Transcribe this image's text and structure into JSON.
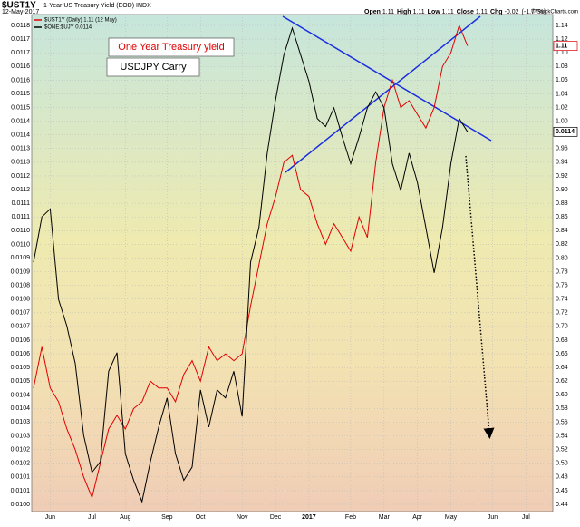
{
  "chart_data": {
    "type": "line",
    "title": "$UST1Y",
    "subtitle": "1-Year US Treasury Yield (EOD) INDX",
    "date": "12-May-2017",
    "credit": "© StockCharts.com",
    "quote": [
      {
        "label": "Open",
        "value": 1.11
      },
      {
        "label": "High",
        "value": 1.11
      },
      {
        "label": "Low",
        "value": 1.11
      },
      {
        "label": "Close",
        "value": 1.11
      },
      {
        "label": "Chg",
        "value": -0.02,
        "pct": "(-1.77%)"
      }
    ],
    "annotations": [
      "One Year Treasury yield",
      "USDJPY Carry"
    ],
    "categories": [
      null,
      null,
      "Jun",
      null,
      null,
      null,
      null,
      "Jul",
      null,
      null,
      null,
      "Aug",
      null,
      null,
      null,
      null,
      "Sep",
      null,
      null,
      null,
      "Oct",
      null,
      null,
      null,
      null,
      "Nov",
      null,
      null,
      null,
      "Dec",
      null,
      null,
      null,
      "2017",
      null,
      null,
      null,
      null,
      "Feb",
      null,
      null,
      null,
      "Mar",
      null,
      null,
      null,
      "Apr",
      null,
      null,
      null,
      "May",
      null,
      null,
      null,
      null,
      "Jun",
      null,
      null,
      null,
      "Jul",
      null,
      null,
      null
    ],
    "series": [
      {
        "name": "$UST1Y (Daily) 1.11 (12 May)",
        "color": "#e00000",
        "axis": "y2",
        "values": [
          0.61,
          0.67,
          0.61,
          0.59,
          0.55,
          0.52,
          0.48,
          0.45,
          0.5,
          0.55,
          0.57,
          0.55,
          0.58,
          0.59,
          0.62,
          0.61,
          0.61,
          0.59,
          0.63,
          0.65,
          0.62,
          0.67,
          0.65,
          0.66,
          0.65,
          0.66,
          0.73,
          0.79,
          0.85,
          0.89,
          0.94,
          0.95,
          0.9,
          0.89,
          0.85,
          0.82,
          0.85,
          0.83,
          0.81,
          0.86,
          0.83,
          0.94,
          1.02,
          1.06,
          1.02,
          1.03,
          1.01,
          0.99,
          1.02,
          1.08,
          1.1,
          1.14,
          1.11,
          null,
          null,
          null,
          null,
          null,
          null,
          null,
          null,
          null,
          null
        ]
      },
      {
        "name": "$ONE:$UJY 0.0114",
        "color": "#000000",
        "values": [
          0.01091,
          0.01108,
          0.01111,
          0.01077,
          0.01067,
          0.01053,
          0.01026,
          0.01012,
          0.01016,
          0.0105,
          0.01057,
          0.01019,
          0.01009,
          0.01001,
          0.01016,
          0.01029,
          0.0104,
          0.01019,
          0.01009,
          0.01014,
          0.01043,
          0.01029,
          0.01043,
          0.0104,
          0.0105,
          0.01033,
          0.01091,
          0.01104,
          0.01132,
          0.01152,
          0.01169,
          0.01179,
          0.01169,
          0.01159,
          0.01145,
          0.01142,
          0.01149,
          0.01138,
          0.01128,
          0.01138,
          0.01149,
          0.01155,
          0.01149,
          0.01128,
          0.01118,
          0.01132,
          0.01121,
          0.01104,
          0.01087,
          0.01104,
          0.01128,
          0.01145,
          0.0114,
          null,
          null,
          null,
          null,
          null,
          null,
          null,
          null,
          null,
          null
        ]
      }
    ],
    "ylim": [
      0.01,
      0.0118
    ],
    "yticks": [
      {
        "value": 0.0118,
        "label": "0.0118"
      },
      {
        "value": 0.011749,
        "label": "0.0117"
      },
      {
        "value": 0.011697,
        "label": "0.0117"
      },
      {
        "value": 0.011646,
        "label": "0.0116"
      },
      {
        "value": 0.011594,
        "label": "0.0116"
      },
      {
        "value": 0.011543,
        "label": "0.0115"
      },
      {
        "value": 0.011491,
        "label": "0.0115"
      },
      {
        "value": 0.01144,
        "label": "0.0114"
      },
      {
        "value": 0.011389,
        "label": "0.0114"
      },
      {
        "value": 0.011337,
        "label": "0.0113"
      },
      {
        "value": 0.011286,
        "label": "0.0113"
      },
      {
        "value": 0.011234,
        "label": "0.0112"
      },
      {
        "value": 0.011183,
        "label": "0.0112"
      },
      {
        "value": 0.011131,
        "label": "0.0111"
      },
      {
        "value": 0.01108,
        "label": "0.0111"
      },
      {
        "value": 0.011029,
        "label": "0.0110"
      },
      {
        "value": 0.010977,
        "label": "0.0110"
      },
      {
        "value": 0.010926,
        "label": "0.0109"
      },
      {
        "value": 0.010874,
        "label": "0.0109"
      },
      {
        "value": 0.010823,
        "label": "0.0108"
      },
      {
        "value": 0.010771,
        "label": "0.0108"
      },
      {
        "value": 0.01072,
        "label": "0.0107"
      },
      {
        "value": 0.010669,
        "label": "0.0107"
      },
      {
        "value": 0.010617,
        "label": "0.0106"
      },
      {
        "value": 0.010566,
        "label": "0.0106"
      },
      {
        "value": 0.010514,
        "label": "0.0105"
      },
      {
        "value": 0.010463,
        "label": "0.0105"
      },
      {
        "value": 0.010411,
        "label": "0.0104"
      },
      {
        "value": 0.01036,
        "label": "0.0104"
      },
      {
        "value": 0.010309,
        "label": "0.0103"
      },
      {
        "value": 0.010257,
        "label": "0.0103"
      },
      {
        "value": 0.010206,
        "label": "0.0102"
      },
      {
        "value": 0.010154,
        "label": "0.0102"
      },
      {
        "value": 0.010103,
        "label": "0.0101"
      },
      {
        "value": 0.010051,
        "label": "0.0101"
      },
      {
        "value": 0.01,
        "label": "0.0100"
      }
    ],
    "y2lim": [
      0.44,
      1.14
    ],
    "y2ticks": [
      1.14,
      1.12,
      {
        "value": 1.1,
        "label": "1.10"
      },
      1.08,
      1.06,
      1.04,
      1.02,
      {
        "value": 1,
        "label": "1.00"
      },
      0.98,
      0.96,
      0.94,
      0.92,
      {
        "value": 0.9,
        "label": "0.90"
      },
      0.88,
      0.86,
      0.84,
      0.82,
      {
        "value": 0.8,
        "label": "0.80"
      },
      0.78,
      0.76,
      0.74,
      0.72,
      {
        "value": 0.7,
        "label": "0.70"
      },
      0.68,
      0.66,
      0.64,
      0.62,
      {
        "value": 0.6,
        "label": "0.60"
      },
      0.58,
      0.56,
      0.54,
      0.52,
      {
        "value": 0.5,
        "label": "0.50"
      },
      0.48,
      0.46,
      0.44
    ],
    "grid": true
  }
}
